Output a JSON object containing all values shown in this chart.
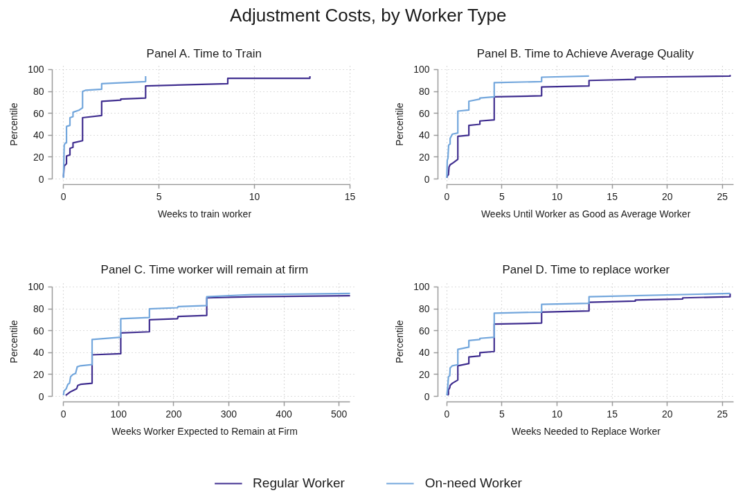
{
  "chart_data": [
    {
      "type": "line",
      "title": "Adjustment Costs, by Worker Type",
      "subtitle": "Panel A. Time to Train",
      "xlabel": "Weeks to train worker",
      "ylabel": "Percentile",
      "xlim": [
        0,
        15
      ],
      "xticks": [
        0,
        5,
        10,
        15
      ],
      "ylim": [
        0,
        100
      ],
      "yticks": [
        0,
        20,
        40,
        60,
        80,
        100
      ],
      "grid": true,
      "legend": "bottom",
      "series": [
        {
          "name": "Regular Worker",
          "color": "#3f2d8f",
          "x": [
            0,
            0.04,
            0.16,
            0.16,
            0.34,
            0.34,
            0.5,
            0.5,
            1,
            1,
            2,
            2,
            3,
            3,
            4.3,
            4.3,
            8.6,
            8.6,
            12.9,
            12.9
          ],
          "values": [
            2,
            12,
            14,
            21,
            22,
            28,
            29,
            33,
            35,
            56,
            58,
            71,
            72,
            73,
            74,
            85,
            87,
            92,
            92,
            94
          ]
        },
        {
          "name": "On-need Worker",
          "color": "#72a6dc",
          "x": [
            0,
            0.04,
            0.1,
            0.16,
            0.16,
            0.34,
            0.34,
            0.5,
            0.5,
            0.83,
            1,
            1,
            1.15,
            2,
            2,
            4.3,
            4.3
          ],
          "values": [
            1,
            31,
            33,
            33,
            48,
            49,
            56,
            57,
            61,
            63,
            65,
            80,
            81,
            82,
            87,
            89,
            94
          ]
        }
      ]
    },
    {
      "type": "line",
      "subtitle": "Panel B. Time to Achieve Average Quality",
      "xlabel": "Weeks Until Worker as Good as Average Worker",
      "ylabel": "Percentile",
      "xlim": [
        0,
        26
      ],
      "xticks": [
        0,
        5,
        10,
        15,
        20,
        25
      ],
      "ylim": [
        0,
        100
      ],
      "yticks": [
        0,
        20,
        40,
        60,
        80,
        100
      ],
      "grid": true,
      "series": [
        {
          "color": "#3f2d8f",
          "x": [
            0,
            0.06,
            0.15,
            0.2,
            0.3,
            0.6,
            1,
            1,
            2,
            2,
            3,
            3,
            4.3,
            4.3,
            8.6,
            8.6,
            12.9,
            12.9,
            17.1,
            17.1,
            25.7,
            25.7
          ],
          "values": [
            1,
            3,
            4,
            11,
            13,
            15,
            18,
            39,
            40,
            49,
            50,
            53,
            54,
            75,
            76,
            84,
            85,
            90,
            91,
            93,
            94,
            95
          ]
        },
        {
          "color": "#72a6dc",
          "x": [
            0,
            0.04,
            0.1,
            0.17,
            0.3,
            0.3,
            0.5,
            1,
            1,
            2,
            2,
            3,
            3,
            4.3,
            4.3,
            8.6,
            8.6,
            12.9
          ],
          "values": [
            1,
            17,
            19,
            31,
            32,
            37,
            41,
            42,
            62,
            63,
            71,
            73,
            74,
            75,
            88,
            89,
            93,
            94
          ]
        }
      ]
    },
    {
      "type": "line",
      "subtitle": "Panel C. Time worker will remain at firm",
      "xlabel": "Weeks Worker Expected to Remain at Firm",
      "ylabel": "Percentile",
      "xlim": [
        0,
        520
      ],
      "xticks": [
        0,
        100,
        200,
        300,
        400,
        500
      ],
      "ylim": [
        0,
        100
      ],
      "yticks": [
        0,
        20,
        40,
        60,
        80,
        100
      ],
      "grid": true,
      "series": [
        {
          "color": "#3f2d8f",
          "x": [
            4,
            12,
            24,
            26,
            31,
            52,
            52,
            104,
            104,
            156,
            156,
            207,
            208,
            260,
            260,
            342,
            520
          ],
          "values": [
            1,
            4,
            7,
            10,
            11,
            12,
            38,
            39,
            58,
            59,
            70,
            71,
            73,
            74,
            90,
            91,
            92
          ]
        },
        {
          "color": "#72a6dc",
          "x": [
            0,
            1,
            5,
            8,
            11,
            13,
            17,
            22,
            25,
            31,
            52,
            52,
            104,
            104,
            156,
            156,
            207,
            208,
            260,
            260,
            342,
            520
          ],
          "values": [
            1,
            5,
            7,
            11,
            12,
            18,
            20,
            21,
            27,
            28,
            29,
            52,
            54,
            71,
            72,
            80,
            81,
            82,
            83,
            91,
            93,
            94
          ]
        }
      ]
    },
    {
      "type": "line",
      "subtitle": "Panel D. Time to replace worker",
      "xlabel": "Weeks Needed to Replace Worker",
      "ylabel": "Percentile",
      "xlim": [
        0,
        26
      ],
      "xticks": [
        0,
        5,
        10,
        15,
        20,
        25
      ],
      "ylim": [
        0,
        100
      ],
      "yticks": [
        0,
        20,
        40,
        60,
        80,
        100
      ],
      "grid": true,
      "series": [
        {
          "color": "#3f2d8f",
          "x": [
            0.06,
            0.15,
            0.15,
            0.27,
            0.3,
            0.5,
            1,
            1,
            2,
            2,
            3,
            3,
            4.3,
            4.3,
            8.6,
            8.6,
            12.9,
            12.9,
            17.1,
            17.1,
            21.4,
            21.4,
            25.7,
            25.7
          ],
          "values": [
            1,
            2,
            6,
            8,
            10,
            12,
            15,
            28,
            30,
            36,
            37,
            40,
            41,
            66,
            67,
            77,
            78,
            86,
            87,
            88,
            89,
            90,
            91,
            94
          ]
        },
        {
          "color": "#72a6dc",
          "x": [
            0,
            0.06,
            0.15,
            0.27,
            0.3,
            0.5,
            1,
            1,
            2,
            2,
            3,
            3,
            4.3,
            4.3,
            8.6,
            8.6,
            12.9,
            12.9,
            25.7
          ],
          "values": [
            1,
            6,
            18,
            19,
            26,
            28,
            29,
            43,
            45,
            51,
            52,
            53,
            54,
            76,
            77,
            84,
            85,
            91,
            94
          ]
        }
      ]
    }
  ]
}
